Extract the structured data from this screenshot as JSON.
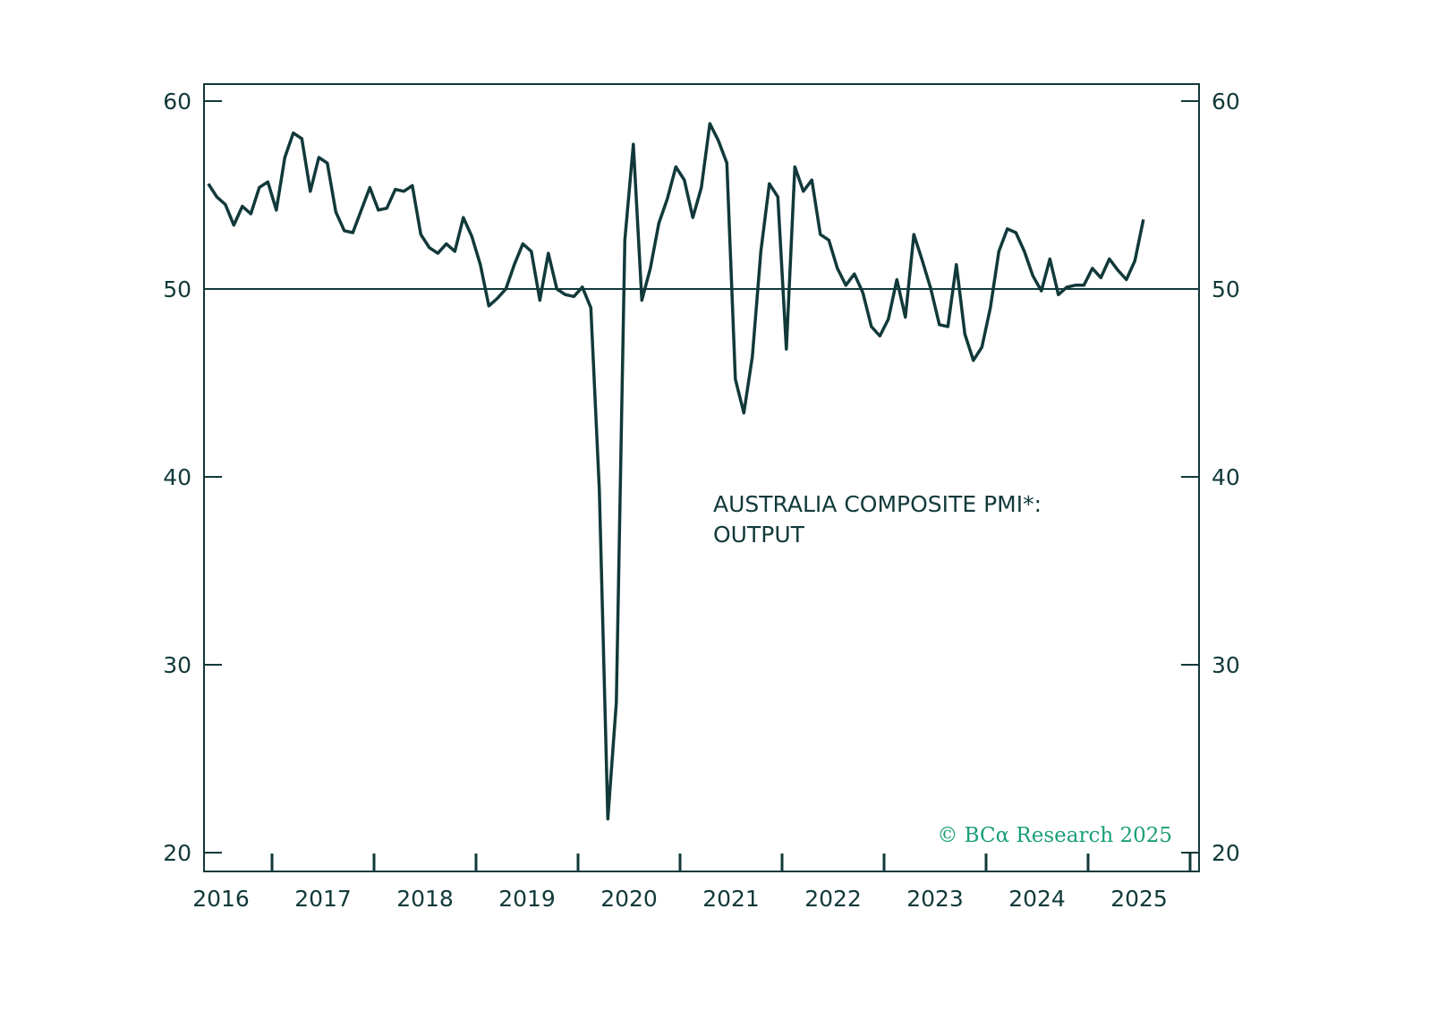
{
  "colors": {
    "line": "#11393a",
    "copyright": "#1a9e78"
  },
  "chart_data": {
    "type": "line",
    "title": "AUSTRALIA COMPOSITE PMI*:",
    "title_line2": "OUTPUT",
    "copyright": "© BCα Research 2025",
    "xlabel": "",
    "ylabel": "",
    "ylim": [
      20,
      60
    ],
    "yticks": [
      "20",
      "30",
      "40",
      "50",
      "60"
    ],
    "xtick_labels": [
      "2016",
      "2017",
      "2018",
      "2019",
      "2020",
      "2021",
      "2022",
      "2023",
      "2024",
      "2025"
    ],
    "reference_line": 50,
    "grid": false,
    "start_month": "2016-05",
    "frequency": "monthly",
    "series": [
      {
        "name": "Australia Composite PMI: Output",
        "values": [
          55.6,
          54.9,
          54.5,
          53.4,
          54.4,
          54.0,
          55.4,
          55.7,
          54.2,
          57.0,
          58.3,
          58.0,
          55.2,
          57.0,
          56.7,
          54.1,
          53.1,
          53.0,
          54.2,
          55.4,
          54.2,
          54.3,
          55.3,
          55.2,
          55.5,
          52.9,
          52.2,
          51.9,
          52.4,
          52.0,
          53.8,
          52.8,
          51.3,
          49.1,
          49.5,
          50.0,
          51.3,
          52.4,
          52.0,
          49.4,
          51.9,
          50.0,
          49.7,
          49.6,
          50.1,
          49.0,
          39.3,
          21.8,
          28.0,
          52.6,
          57.7,
          49.4,
          51.1,
          53.5,
          54.8,
          56.5,
          55.8,
          53.8,
          55.4,
          58.8,
          57.9,
          56.7,
          45.2,
          43.4,
          46.4,
          52.0,
          55.6,
          54.9,
          46.8,
          56.5,
          55.2,
          55.8,
          52.9,
          52.6,
          51.1,
          50.2,
          50.8,
          49.8,
          48.0,
          47.5,
          48.4,
          50.5,
          48.5,
          52.9,
          51.5,
          50.0,
          48.1,
          48.0,
          51.3,
          47.6,
          46.2,
          46.9,
          49.0,
          52.0,
          53.2,
          53.0,
          52.0,
          50.7,
          49.9,
          51.6,
          49.7,
          50.1,
          50.2,
          50.2,
          51.1,
          50.6,
          51.6,
          51.0,
          50.5,
          51.5,
          53.7
        ]
      }
    ]
  }
}
